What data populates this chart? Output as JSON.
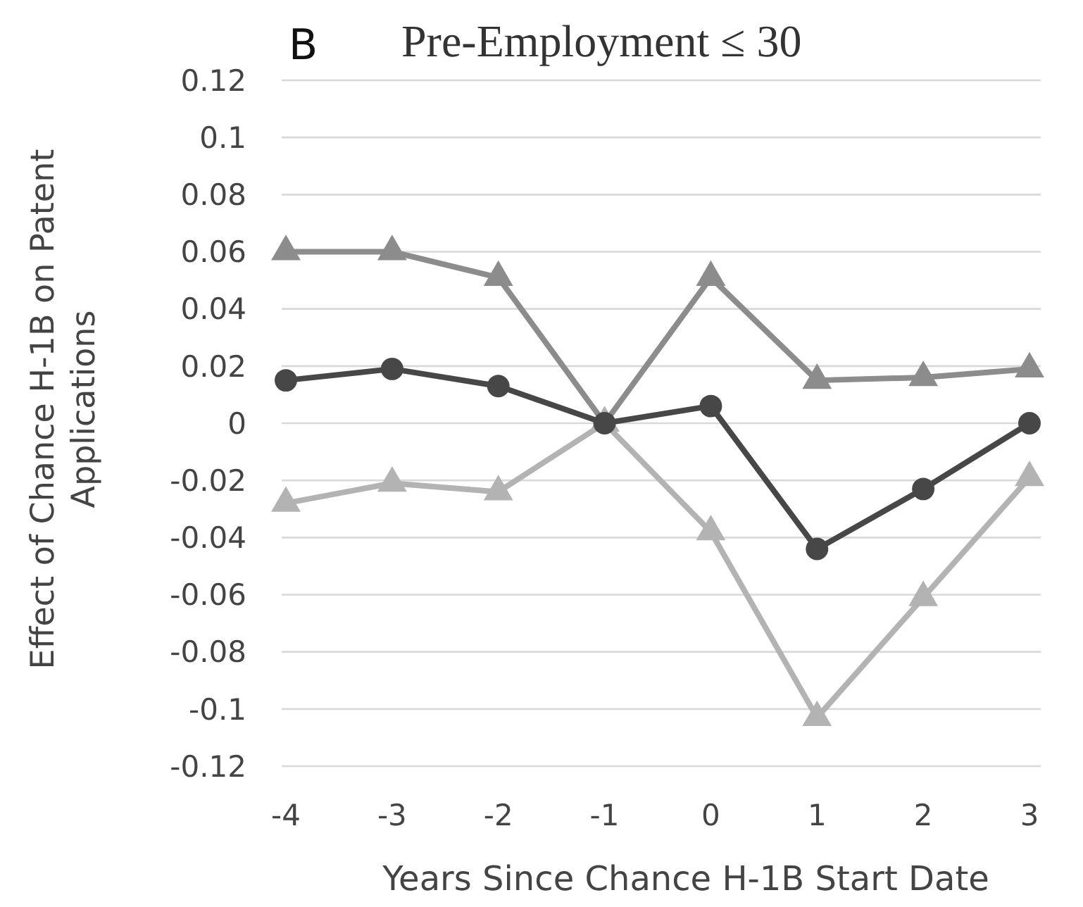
{
  "chart_data": {
    "type": "line",
    "title": "Pre-Employment ≤ 30",
    "annotations": [
      "B"
    ],
    "xlabel": "Years Since Chance H-1B Start Date",
    "ylabel": "Effect of Chance H-1B on Patent Applications",
    "categories": [
      "-4",
      "-3",
      "-2",
      "-1",
      "0",
      "1",
      "2",
      "3"
    ],
    "series": [
      {
        "color": "#8c8c8c",
        "marker": "triangle",
        "values": [
          0.06,
          0.06,
          0.051,
          0,
          0.051,
          0.015,
          0.016,
          0.019
        ]
      },
      {
        "color": "#b3b3b3",
        "marker": "triangle",
        "values": [
          -0.028,
          -0.021,
          -0.024,
          0,
          -0.038,
          -0.103,
          -0.061,
          -0.019
        ]
      },
      {
        "color": "#474747",
        "marker": "circle",
        "values": [
          0.015,
          0.019,
          0.013,
          0,
          0.006,
          -0.044,
          -0.023,
          0
        ]
      }
    ],
    "ylim": [
      -0.12,
      0.12
    ],
    "yticks": [
      -0.12,
      -0.1,
      -0.08,
      -0.06,
      -0.04,
      -0.02,
      0,
      0.02,
      0.04,
      0.06,
      0.08,
      0.1,
      0.12
    ],
    "grid": "y",
    "line_style": "solid"
  }
}
